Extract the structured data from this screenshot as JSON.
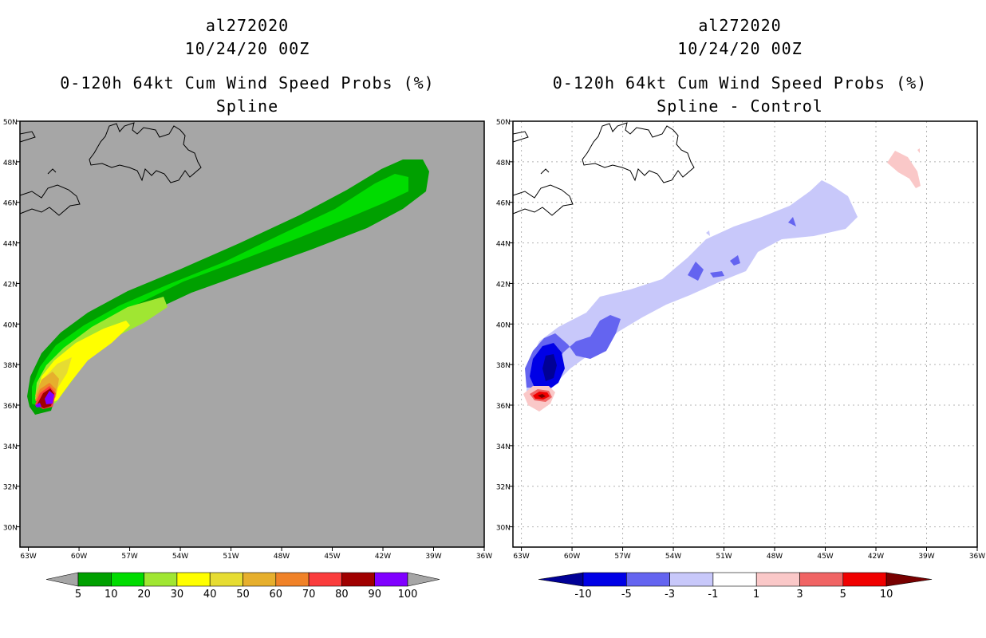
{
  "chart_data": [
    {
      "type": "contour-map",
      "storm_id": "al272020",
      "datetime": "10/24/20 00Z",
      "title": "0-120h 64kt Cum Wind Speed Probs (%)",
      "subtitle": "Spline",
      "background_color": "#a6a6a6",
      "lat_ticks": [
        "50N",
        "48N",
        "46N",
        "44N",
        "42N",
        "40N",
        "38N",
        "36N",
        "34N",
        "32N",
        "30N"
      ],
      "lon_ticks": [
        "63W",
        "60W",
        "57W",
        "54W",
        "51W",
        "48W",
        "45W",
        "42W",
        "39W",
        "36W"
      ],
      "lat_range": [
        29,
        50
      ],
      "lon_range": [
        -63.5,
        -36
      ],
      "grid": false,
      "colorbar": {
        "labels": [
          "5",
          "10",
          "20",
          "30",
          "40",
          "50",
          "60",
          "70",
          "80",
          "90",
          "100"
        ],
        "colors": [
          "#00a000",
          "#00dc00",
          "#a0e632",
          "#ffff00",
          "#e6dc32",
          "#e6af2d",
          "#f08228",
          "#fa3c3c",
          "#a00000",
          "#8000ff"
        ],
        "end_arrow_color": "#a6a6a6"
      }
    },
    {
      "type": "contour-map",
      "storm_id": "al272020",
      "datetime": "10/24/20 00Z",
      "title": "0-120h 64kt Cum Wind Speed Probs (%)",
      "subtitle": "Spline - Control",
      "background_color": "#ffffff",
      "lat_ticks": [
        "50N",
        "48N",
        "46N",
        "44N",
        "42N",
        "40N",
        "38N",
        "36N",
        "34N",
        "32N",
        "30N"
      ],
      "lon_ticks": [
        "63W",
        "60W",
        "57W",
        "54W",
        "51W",
        "48W",
        "45W",
        "42W",
        "39W",
        "36W"
      ],
      "lat_range": [
        29,
        50
      ],
      "lon_range": [
        -63.5,
        -36
      ],
      "grid": true,
      "colorbar": {
        "labels": [
          "-10",
          "-5",
          "-3",
          "-1",
          "1",
          "3",
          "5",
          "10"
        ],
        "colors": [
          "#0000e6",
          "#6464f0",
          "#c8c8fa",
          "#ffffff",
          "#fac8c8",
          "#f06464",
          "#f00000"
        ],
        "low_arrow_color": "#000096",
        "high_arrow_color": "#780000"
      }
    }
  ]
}
